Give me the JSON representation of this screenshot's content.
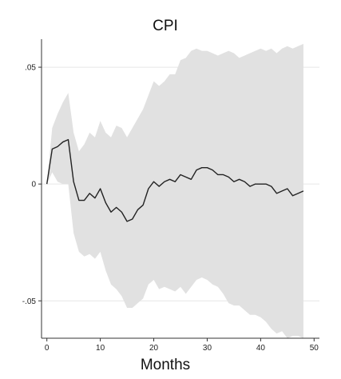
{
  "chart_data": {
    "type": "line",
    "title": "CPI",
    "xlabel": "Months",
    "ylabel": "",
    "xlim": [
      -1,
      51
    ],
    "ylim": [
      -0.066,
      0.062
    ],
    "x_ticks": [
      0,
      10,
      20,
      30,
      40,
      50
    ],
    "x_tick_labels": [
      "0",
      "10",
      "20",
      "30",
      "40",
      "50"
    ],
    "y_ticks": [
      -0.05,
      0,
      0.05
    ],
    "y_tick_labels": [
      "-.05",
      "0",
      ".05"
    ],
    "grid": true,
    "legend": "none",
    "colors": {
      "band": "#e1e1e1",
      "line": "#222222"
    },
    "series": [
      {
        "kind": "line",
        "x": [
          0,
          1,
          2,
          3,
          4,
          5,
          6,
          7,
          8,
          9,
          10,
          11,
          12,
          13,
          14,
          15,
          16,
          17,
          18,
          19,
          20,
          21,
          22,
          23,
          24,
          25,
          26,
          27,
          28,
          29,
          30,
          31,
          32,
          33,
          34,
          35,
          36,
          37,
          38,
          39,
          40,
          41,
          42,
          43,
          44,
          45,
          46,
          47,
          48
        ],
        "values": [
          0,
          0.015,
          0.016,
          0.018,
          0.019,
          0.001,
          -0.007,
          -0.007,
          -0.004,
          -0.006,
          -0.002,
          -0.008,
          -0.012,
          -0.01,
          -0.012,
          -0.016,
          -0.015,
          -0.011,
          -0.009,
          -0.002,
          0.001,
          -0.001,
          0.001,
          0.002,
          0.001,
          0.004,
          0.003,
          0.002,
          0.006,
          0.007,
          0.007,
          0.006,
          0.004,
          0.004,
          0.003,
          0.001,
          0.002,
          0.001,
          -0.001,
          0.0,
          0.0,
          0.0,
          -0.001,
          -0.004,
          -0.003,
          -0.002,
          -0.005,
          -0.004,
          -0.003
        ]
      },
      {
        "kind": "band",
        "x": [
          0,
          1,
          2,
          3,
          4,
          5,
          6,
          7,
          8,
          9,
          10,
          11,
          12,
          13,
          14,
          15,
          16,
          17,
          18,
          19,
          20,
          21,
          22,
          23,
          24,
          25,
          26,
          27,
          28,
          29,
          30,
          31,
          32,
          33,
          34,
          35,
          36,
          37,
          38,
          39,
          40,
          41,
          42,
          43,
          44,
          45,
          46,
          47,
          48
        ],
        "upper": [
          0,
          0.024,
          0.03,
          0.035,
          0.039,
          0.022,
          0.014,
          0.017,
          0.022,
          0.02,
          0.027,
          0.022,
          0.02,
          0.025,
          0.024,
          0.02,
          0.024,
          0.028,
          0.032,
          0.038,
          0.044,
          0.042,
          0.044,
          0.047,
          0.047,
          0.053,
          0.054,
          0.057,
          0.058,
          0.057,
          0.057,
          0.056,
          0.055,
          0.056,
          0.057,
          0.056,
          0.054,
          0.055,
          0.056,
          0.057,
          0.058,
          0.057,
          0.058,
          0.056,
          0.058,
          0.059,
          0.058,
          0.059,
          0.06
        ],
        "lower": [
          0,
          0.005,
          0.001,
          0.0,
          0.0,
          -0.021,
          -0.029,
          -0.031,
          -0.03,
          -0.032,
          -0.029,
          -0.037,
          -0.043,
          -0.045,
          -0.048,
          -0.053,
          -0.053,
          -0.051,
          -0.049,
          -0.043,
          -0.041,
          -0.045,
          -0.044,
          -0.045,
          -0.046,
          -0.044,
          -0.047,
          -0.044,
          -0.041,
          -0.04,
          -0.041,
          -0.043,
          -0.044,
          -0.047,
          -0.051,
          -0.052,
          -0.052,
          -0.054,
          -0.056,
          -0.056,
          -0.057,
          -0.059,
          -0.062,
          -0.064,
          -0.063,
          -0.066,
          -0.065,
          -0.065,
          -0.066
        ]
      }
    ]
  }
}
